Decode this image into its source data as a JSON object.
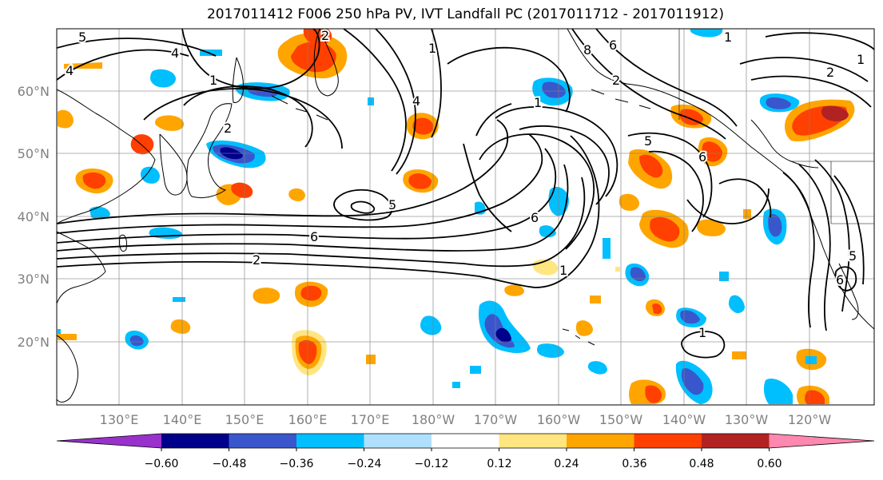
{
  "title": "2017011412 F006 250 hPa PV, IVT Landfall PC (2017011712 - 2017011912)",
  "latitude_labels": [
    "60°N",
    "50°N",
    "40°N",
    "30°N",
    "20°N"
  ],
  "longitude_labels": [
    "130°E",
    "140°E",
    "150°E",
    "160°E",
    "170°E",
    "180°W",
    "170°W",
    "160°W",
    "150°W",
    "140°W",
    "130°W",
    "120°W"
  ],
  "contour_labels": [
    "5",
    "4",
    "4",
    "1",
    "2",
    "2",
    "1",
    "4",
    "8",
    "6",
    "2",
    "1",
    "2",
    "5",
    "5",
    "6",
    "2",
    "6",
    "1",
    "1",
    "6",
    "1",
    "5",
    "6",
    "1"
  ],
  "colorbar": {
    "tick_labels": [
      "−0.60",
      "−0.48",
      "−0.36",
      "−0.24",
      "−0.12",
      "0.12",
      "0.24",
      "0.36",
      "0.48",
      "0.60"
    ],
    "colors": [
      "#9932cc",
      "#00008b",
      "#3a56cc",
      "#00bfff",
      "#b0e0ff",
      "#ffffff",
      "#ffe680",
      "#ffa500",
      "#ff4000",
      "#b22222",
      "#ff88b0"
    ]
  },
  "legend_colors": {
    "contour": "#000000",
    "coastline": "#000000",
    "grid": "#808080"
  }
}
